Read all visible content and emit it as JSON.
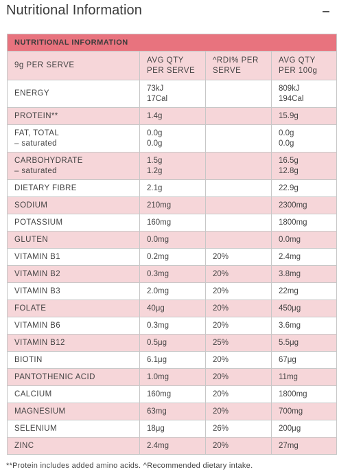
{
  "page": {
    "title": "Nutritional Information",
    "collapse_symbol": "−"
  },
  "table": {
    "caption": "NUTRITIONAL INFORMATION",
    "headers": [
      [
        "9g PER SERVE"
      ],
      [
        "AVG QTY",
        "PER SERVE"
      ],
      [
        "^RDI% PER",
        "SERVE"
      ],
      [
        "AVG QTY",
        "PER 100g"
      ]
    ],
    "rows": [
      {
        "name": [
          "ENERGY"
        ],
        "serve": [
          "73kJ",
          "17Cal"
        ],
        "rdi": [
          ""
        ],
        "per100": [
          "809kJ",
          "194Cal"
        ]
      },
      {
        "name": [
          "PROTEIN**"
        ],
        "serve": [
          "1.4g"
        ],
        "rdi": [
          ""
        ],
        "per100": [
          "15.9g"
        ]
      },
      {
        "name": [
          "FAT, TOTAL",
          "– saturated"
        ],
        "serve": [
          "0.0g",
          "0.0g"
        ],
        "rdi": [
          ""
        ],
        "per100": [
          "0.0g",
          "0.0g"
        ]
      },
      {
        "name": [
          "CARBOHYDRATE",
          "– saturated"
        ],
        "serve": [
          "1.5g",
          "1.2g"
        ],
        "rdi": [
          ""
        ],
        "per100": [
          "16.5g",
          "12.8g"
        ]
      },
      {
        "name": [
          "DIETARY FIBRE"
        ],
        "serve": [
          "2.1g"
        ],
        "rdi": [
          ""
        ],
        "per100": [
          "22.9g"
        ]
      },
      {
        "name": [
          "SODIUM"
        ],
        "serve": [
          "210mg"
        ],
        "rdi": [
          ""
        ],
        "per100": [
          "2300mg"
        ]
      },
      {
        "name": [
          "POTASSIUM"
        ],
        "serve": [
          "160mg"
        ],
        "rdi": [
          ""
        ],
        "per100": [
          "1800mg"
        ]
      },
      {
        "name": [
          "GLUTEN"
        ],
        "serve": [
          "0.0mg"
        ],
        "rdi": [
          ""
        ],
        "per100": [
          "0.0mg"
        ]
      },
      {
        "name": [
          "VITAMIN B1"
        ],
        "serve": [
          "0.2mg"
        ],
        "rdi": [
          "20%"
        ],
        "per100": [
          "2.4mg"
        ]
      },
      {
        "name": [
          "VITAMIN B2"
        ],
        "serve": [
          "0.3mg"
        ],
        "rdi": [
          "20%"
        ],
        "per100": [
          "3.8mg"
        ]
      },
      {
        "name": [
          "VITAMIN B3"
        ],
        "serve": [
          "2.0mg"
        ],
        "rdi": [
          "20%"
        ],
        "per100": [
          "22mg"
        ]
      },
      {
        "name": [
          "FOLATE"
        ],
        "serve": [
          "40μg"
        ],
        "rdi": [
          "20%"
        ],
        "per100": [
          "450μg"
        ]
      },
      {
        "name": [
          "VITAMIN B6"
        ],
        "serve": [
          "0.3mg"
        ],
        "rdi": [
          "20%"
        ],
        "per100": [
          "3.6mg"
        ]
      },
      {
        "name": [
          "VITAMIN B12"
        ],
        "serve": [
          "0.5μg"
        ],
        "rdi": [
          "25%"
        ],
        "per100": [
          "5.5μg"
        ]
      },
      {
        "name": [
          "BIOTIN"
        ],
        "serve": [
          "6.1μg"
        ],
        "rdi": [
          "20%"
        ],
        "per100": [
          "67μg"
        ]
      },
      {
        "name": [
          "PANTOTHENIC ACID"
        ],
        "serve": [
          "1.0mg"
        ],
        "rdi": [
          "20%"
        ],
        "per100": [
          "11mg"
        ]
      },
      {
        "name": [
          "CALCIUM"
        ],
        "serve": [
          "160mg"
        ],
        "rdi": [
          "20%"
        ],
        "per100": [
          "1800mg"
        ]
      },
      {
        "name": [
          "MAGNESIUM"
        ],
        "serve": [
          "63mg"
        ],
        "rdi": [
          "20%"
        ],
        "per100": [
          "700mg"
        ]
      },
      {
        "name": [
          "SELENIUM"
        ],
        "serve": [
          "18μg"
        ],
        "rdi": [
          "26%"
        ],
        "per100": [
          "200μg"
        ]
      },
      {
        "name": [
          "ZINC"
        ],
        "serve": [
          "2.4mg"
        ],
        "rdi": [
          "20%"
        ],
        "per100": [
          "27mg"
        ]
      }
    ]
  },
  "footnote": "**Protein includes added amino acids. ^Recommended dietary intake.",
  "colors": {
    "caption_bg": "#e8737e",
    "stripe_pink": "#f6d6d9",
    "border": "#c7c7c7",
    "text": "#3a3a3a"
  }
}
